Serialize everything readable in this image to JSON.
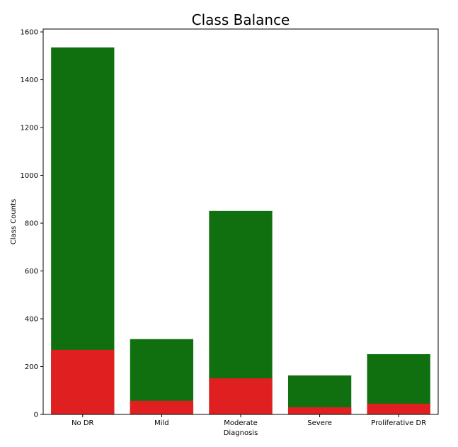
{
  "chart_data": {
    "type": "bar",
    "title": "Class Balance",
    "xlabel": "Diagnosis",
    "ylabel": "Class Counts",
    "categories": [
      "No DR",
      "Mild",
      "Moderate",
      "Severe",
      "Proliferative DR"
    ],
    "series": [
      {
        "values": [
          1535,
          315,
          851,
          163,
          252
        ],
        "color": "#107010"
      },
      {
        "values": [
          270,
          57,
          151,
          30,
          45
        ],
        "color": "#e02020"
      }
    ],
    "overlay": true,
    "ylim": [
      0,
      1612
    ],
    "yticks": [
      0,
      200,
      400,
      600,
      800,
      1000,
      1200,
      1400,
      1600
    ],
    "grid": false,
    "legend": "none"
  }
}
